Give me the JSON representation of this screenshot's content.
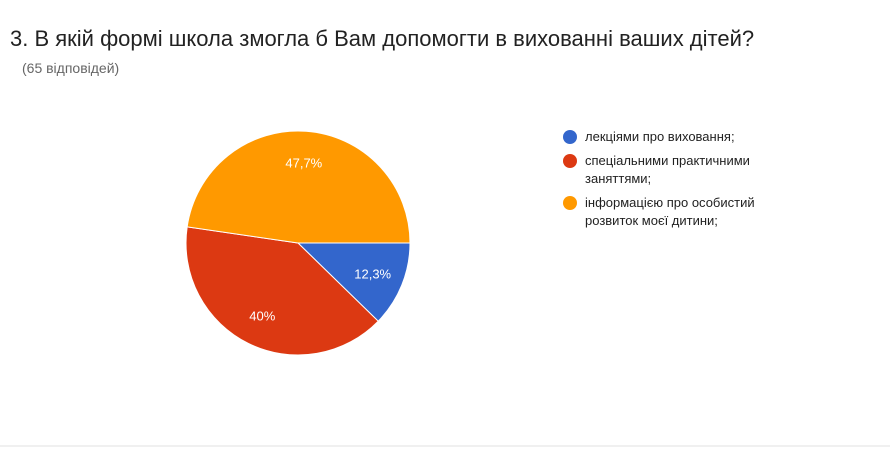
{
  "chart_data": {
    "type": "pie",
    "title": "3. В якій формі школа змогла б Вам допомогти в вихованні ваших дітей?",
    "subtitle": "(65 відповідей)",
    "categories": [
      "лекціями про виховання;",
      "спеціальними практичними заняттями;",
      "інформацією про особистий розвиток моєї дитини;"
    ],
    "values": [
      12.3,
      40,
      47.7
    ],
    "value_labels": [
      "12,3%",
      "40%",
      "47,7%"
    ],
    "colors": [
      "#3366cc",
      "#dc3912",
      "#ff9900"
    ],
    "legend": "right"
  }
}
